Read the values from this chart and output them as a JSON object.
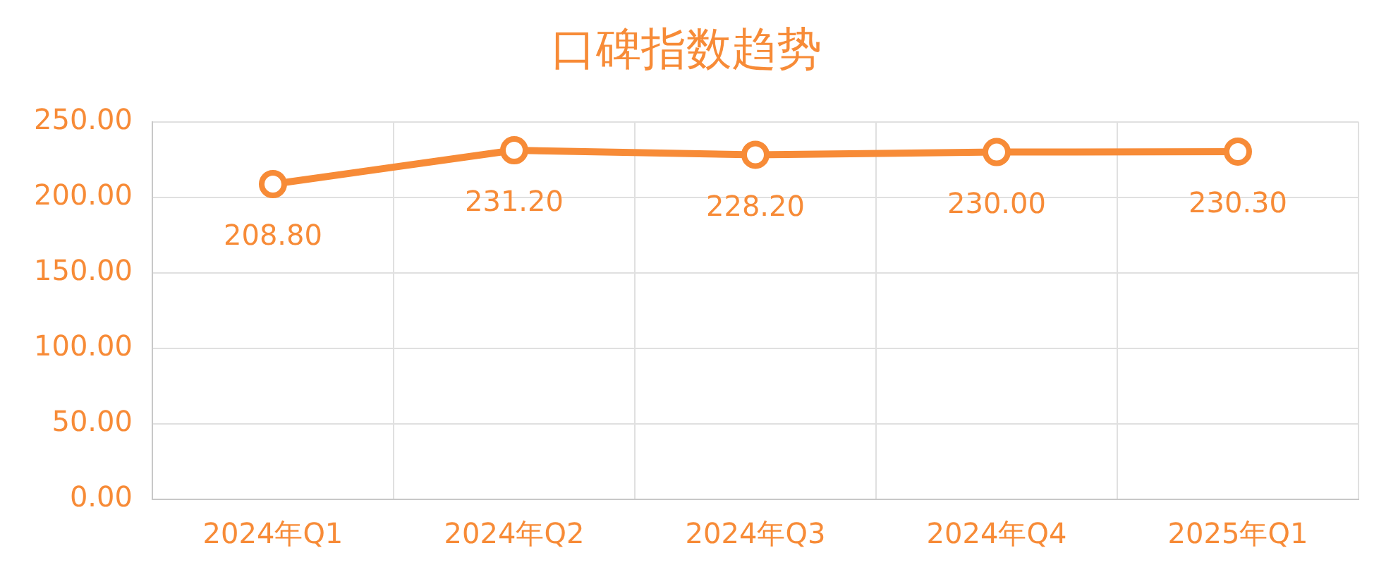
{
  "chart_data": {
    "type": "line",
    "title": "口碑指数趋势",
    "categories": [
      "2024年Q1",
      "2024年Q2",
      "2024年Q3",
      "2024年Q4",
      "2025年Q1"
    ],
    "series": [
      {
        "color": "#f78b37",
        "values": [
          208.8,
          231.2,
          228.2,
          230.0,
          230.3
        ],
        "value_labels": [
          "208.80",
          "231.20",
          "228.20",
          "230.00",
          "230.30"
        ]
      }
    ],
    "ylim": [
      0,
      250
    ],
    "yticks": [
      {
        "value": 0,
        "label": "0.00"
      },
      {
        "value": 50,
        "label": "50.00"
      },
      {
        "value": 100,
        "label": "100.00"
      },
      {
        "value": 150,
        "label": "150.00"
      },
      {
        "value": 200,
        "label": "200.00"
      },
      {
        "value": 250,
        "label": "250.00"
      }
    ],
    "grid": true,
    "legend": false,
    "marker": "circle",
    "line_style": "solid"
  }
}
